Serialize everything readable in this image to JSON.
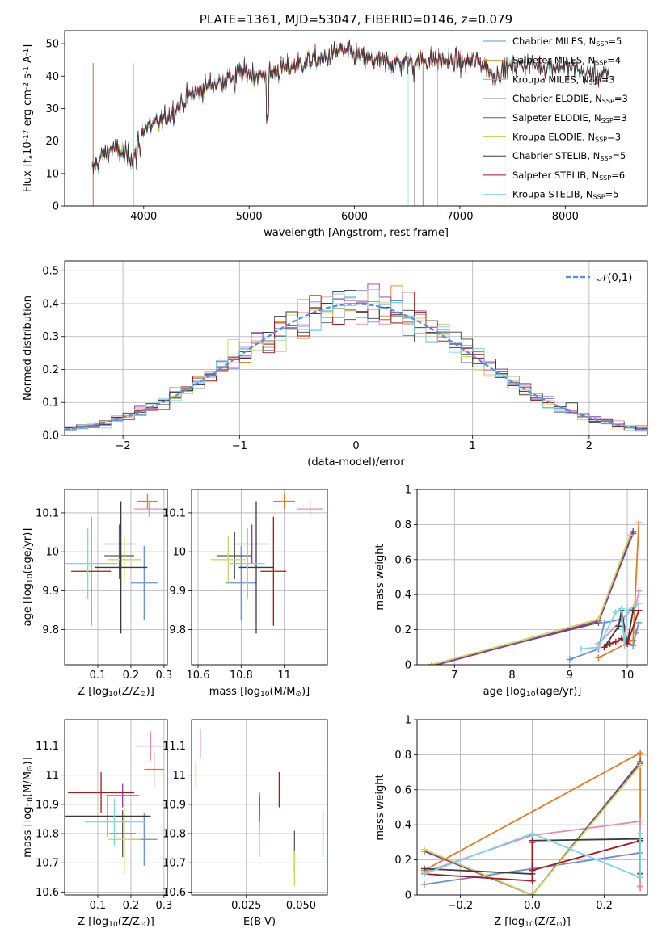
{
  "colors": {
    "series": [
      "#6a8fd8",
      "#e07b25",
      "#e58cb6",
      "#5a5a5a",
      "#8e3aa8",
      "#c9d857",
      "#3b3b3b",
      "#a3191c",
      "#7dd6de"
    ],
    "normal": "#5b8dd6",
    "grid": "#b0b0b0"
  },
  "series_names": [
    "Chabrier MILES, N$_{SSP}$=5",
    "Salpeter MILES, N$_{SSP}$=4",
    "Kroupa MILES, N$_{SSP}$=3",
    "Chabrier ELODIE, N$_{SSP}$=3",
    "Salpeter ELODIE, N$_{SSP}$=3",
    "Kroupa ELODIE, N$_{SSP}$=3",
    "Chabrier STELIB, N$_{SSP}$=5",
    "Salpeter STELIB, N$_{SSP}$=6",
    "Kroupa STELIB, N$_{SSP}$=5"
  ],
  "chart_data": [
    {
      "type": "line",
      "title": "PLATE=1361, MJD=53047, FIBERID=0146, z=0.079",
      "xlabel": "wavelength [Angstrom, rest frame]",
      "ylabel": "Flux [f$_\\lambda$10$^{-17}$ erg cm$^{-2}$ s$^{-1}$ A$^{-1}$]",
      "xlim": [
        3250,
        8780
      ],
      "ylim": [
        0,
        54
      ],
      "xticks": [
        4000,
        5000,
        6000,
        7000,
        8000
      ],
      "yticks": [
        0,
        10,
        20,
        30,
        40,
        50
      ],
      "grid": false,
      "legend": "upper right",
      "spectrum_anchors": {
        "x": [
          3510,
          3600,
          3700,
          3800,
          3900,
          3950,
          4000,
          4100,
          4200,
          4300,
          4400,
          4500,
          4600,
          4700,
          4800,
          4900,
          5000,
          5100,
          5200,
          5300,
          5400,
          5500,
          5600,
          5700,
          5800,
          5870,
          5950,
          6050,
          6150,
          6250,
          6350,
          6450,
          6550,
          6650,
          6750,
          6850,
          6950,
          7050,
          7150,
          7250,
          7320,
          7420,
          7600,
          7800,
          8000,
          8200,
          8400
        ],
        "y": [
          11,
          15,
          18,
          16,
          15,
          20,
          24,
          25,
          27,
          30,
          33,
          35,
          37,
          38,
          39,
          41,
          41,
          40,
          41,
          42,
          43,
          44,
          45,
          45,
          47,
          48,
          47,
          46,
          45,
          44.5,
          44,
          44,
          44.5,
          45,
          45,
          45,
          44.5,
          44,
          45,
          43,
          40,
          42,
          44,
          43,
          43,
          41,
          40
        ]
      }
    },
    {
      "type": "line",
      "xlabel": "(data-model)/error",
      "ylabel": "Normed distribution",
      "xlim": [
        -2.5,
        2.5
      ],
      "ylim": [
        0,
        0.53
      ],
      "xticks": [
        -2,
        -1,
        0,
        1,
        2
      ],
      "yticks": [
        0.0,
        0.1,
        0.2,
        0.3,
        0.4,
        0.5
      ],
      "grid": true,
      "legend": "upper right",
      "normal_label": "$\\mathcal{N}(0,1)$"
    },
    {
      "type": "scatter",
      "xlabel": "Z [log$_{10}$(Z/Z$_\\odot$)]",
      "ylabel": "age  [log$_{10}$(age/yr)]",
      "xlim": [
        0.0,
        0.31
      ],
      "ylim": [
        9.71,
        10.16
      ],
      "xticks": [
        0.1,
        0.2,
        0.3
      ],
      "yticks": [
        9.8,
        9.9,
        10.0,
        10.1
      ],
      "grid": true,
      "points": [
        {
          "s": 0,
          "x": 0.24,
          "xerr": 0.04,
          "y": 9.92,
          "yerr": 0.095
        },
        {
          "s": 1,
          "x": 0.25,
          "xerr": 0.03,
          "y": 10.13,
          "yerr": 0.02
        },
        {
          "s": 2,
          "x": 0.255,
          "xerr": 0.045,
          "y": 10.11,
          "yerr": 0.02
        },
        {
          "s": 3,
          "x": 0.165,
          "xerr": 0.045,
          "y": 9.99,
          "yerr": 0.06
        },
        {
          "s": 4,
          "x": 0.165,
          "xerr": 0.05,
          "y": 10.02,
          "yerr": 0.05
        },
        {
          "s": 5,
          "x": 0.18,
          "xerr": 0.05,
          "y": 9.98,
          "yerr": 0.06
        },
        {
          "s": 6,
          "x": 0.17,
          "xerr": 0.08,
          "y": 9.96,
          "yerr": 0.17
        },
        {
          "s": 7,
          "x": 0.08,
          "xerr": 0.06,
          "y": 9.95,
          "yerr": 0.14
        },
        {
          "s": 8,
          "x": 0.07,
          "xerr": 0.09,
          "y": 9.97,
          "yerr": 0.09
        }
      ]
    },
    {
      "type": "scatter",
      "xlabel": "mass [log$_{10}$(M/M$_\\odot$)]",
      "ylabel": "",
      "xlim": [
        10.57,
        11.2
      ],
      "ylim": [
        9.71,
        10.16
      ],
      "xticks": [
        10.6,
        10.8,
        11.0
      ],
      "yticks": [
        9.8,
        9.9,
        10.0,
        10.1
      ],
      "grid": true,
      "points": [
        {
          "s": 0,
          "x": 10.8,
          "xerr": 0.07,
          "y": 9.92,
          "yerr": 0.095
        },
        {
          "s": 1,
          "x": 11.0,
          "xerr": 0.05,
          "y": 10.13,
          "yerr": 0.02
        },
        {
          "s": 2,
          "x": 11.12,
          "xerr": 0.06,
          "y": 10.11,
          "yerr": 0.02
        },
        {
          "s": 3,
          "x": 10.77,
          "xerr": 0.08,
          "y": 9.99,
          "yerr": 0.06
        },
        {
          "s": 4,
          "x": 10.85,
          "xerr": 0.08,
          "y": 10.02,
          "yerr": 0.05
        },
        {
          "s": 5,
          "x": 10.74,
          "xerr": 0.08,
          "y": 9.98,
          "yerr": 0.06
        },
        {
          "s": 6,
          "x": 10.87,
          "xerr": 0.08,
          "y": 9.96,
          "yerr": 0.17
        },
        {
          "s": 7,
          "x": 10.95,
          "xerr": 0.06,
          "y": 9.95,
          "yerr": 0.14
        },
        {
          "s": 8,
          "x": 10.83,
          "xerr": 0.08,
          "y": 9.97,
          "yerr": 0.09
        }
      ]
    },
    {
      "type": "line",
      "xlabel": "age  [log$_{10}$(age/yr)]",
      "ylabel": "mass weight",
      "xlim": [
        6.35,
        10.35
      ],
      "ylim": [
        0.0,
        1.0
      ],
      "xticks": [
        7,
        8,
        9,
        10
      ],
      "yticks": [
        0.0,
        0.2,
        0.4,
        0.6,
        0.8,
        1.0
      ],
      "grid": true,
      "series": [
        {
          "s": 0,
          "x": [
            9.0,
            9.5,
            9.6,
            9.9,
            10.0,
            10.1,
            10.15,
            10.2
          ],
          "y": [
            0.03,
            0.09,
            0.24,
            0.26,
            0.13,
            0.11,
            0.18,
            0.24
          ]
        },
        {
          "s": 1,
          "x": [
            9.5,
            10.1,
            10.2
          ],
          "y": [
            0.04,
            0.14,
            0.81
          ]
        },
        {
          "s": 2,
          "x": [
            9.5,
            10.15,
            10.2
          ],
          "y": [
            0.12,
            0.34,
            0.42
          ]
        },
        {
          "s": 3,
          "x": [
            6.6,
            9.5,
            10.1
          ],
          "y": [
            0.0,
            0.24,
            0.76
          ]
        },
        {
          "s": 4,
          "x": [
            6.7,
            9.5,
            10.1
          ],
          "y": [
            0.0,
            0.25,
            0.75
          ]
        },
        {
          "s": 5,
          "x": [
            6.6,
            9.5,
            10.05
          ],
          "y": [
            0.0,
            0.26,
            0.74
          ]
        },
        {
          "s": 6,
          "x": [
            9.6,
            9.85,
            9.9,
            10.0,
            10.1
          ],
          "y": [
            0.1,
            0.22,
            0.31,
            0.12,
            0.31
          ]
        },
        {
          "s": 7,
          "x": [
            9.6,
            9.7,
            9.8,
            9.9,
            10.0,
            10.2
          ],
          "y": [
            0.1,
            0.12,
            0.13,
            0.15,
            0.12,
            0.31
          ]
        },
        {
          "s": 8,
          "x": [
            9.2,
            9.5,
            9.8,
            9.9,
            9.95,
            10.0,
            10.2
          ],
          "y": [
            0.09,
            0.1,
            0.3,
            0.32,
            0.11,
            0.31,
            0.35
          ]
        }
      ]
    },
    {
      "type": "scatter",
      "xlabel": "Z [log$_{10}$(Z/Z$_\\odot$)]",
      "ylabel": "mass [log$_{10}$(M/M$_\\odot$)]",
      "xlim": [
        0.0,
        0.31
      ],
      "ylim": [
        10.59,
        11.19
      ],
      "xticks": [
        0.1,
        0.2,
        0.3
      ],
      "yticks": [
        10.6,
        10.7,
        10.8,
        10.9,
        11.0,
        11.1
      ],
      "grid": true,
      "points": [
        {
          "s": 0,
          "x": 0.24,
          "xerr": 0.04,
          "y": 10.78,
          "yerr": 0.09
        },
        {
          "s": 1,
          "x": 0.27,
          "xerr": 0.03,
          "y": 11.02,
          "yerr": 0.06
        },
        {
          "s": 2,
          "x": 0.26,
          "xerr": 0.045,
          "y": 11.1,
          "yerr": 0.05
        },
        {
          "s": 3,
          "x": 0.175,
          "xerr": 0.04,
          "y": 10.8,
          "yerr": 0.08
        },
        {
          "s": 4,
          "x": 0.175,
          "xerr": 0.05,
          "y": 10.93,
          "yerr": 0.04
        },
        {
          "s": 5,
          "x": 0.18,
          "xerr": 0.05,
          "y": 10.78,
          "yerr": 0.12
        },
        {
          "s": 6,
          "x": 0.13,
          "xerr": 0.13,
          "y": 10.86,
          "yerr": 0.07
        },
        {
          "s": 7,
          "x": 0.11,
          "xerr": 0.1,
          "y": 10.94,
          "yerr": 0.07
        },
        {
          "s": 8,
          "x": 0.15,
          "xerr": 0.09,
          "y": 10.84,
          "yerr": 0.08
        }
      ]
    },
    {
      "type": "scatter",
      "xlabel": "E(B-V)",
      "ylabel": "",
      "xlim": [
        0.0,
        0.062
      ],
      "ylim": [
        10.59,
        11.19
      ],
      "xticks": [
        0.025,
        0.05
      ],
      "xticklabels": [
        "0.025",
        "0.050"
      ],
      "yticks": [
        10.6,
        10.7,
        10.8,
        10.9,
        11.0,
        11.1
      ],
      "grid": true,
      "points": [
        {
          "s": 0,
          "x": 0.06,
          "y": 10.8,
          "yerr": 0.08
        },
        {
          "s": 1,
          "x": 0.002,
          "y": 11.0,
          "yerr": 0.04
        },
        {
          "s": 2,
          "x": 0.004,
          "y": 11.11,
          "yerr": 0.05
        },
        {
          "s": 3,
          "x": 0.047,
          "y": 10.74,
          "yerr": 0.07
        },
        {
          "s": 4,
          "x": 0.031,
          "y": 10.9,
          "yerr": 0.04
        },
        {
          "s": 5,
          "x": 0.047,
          "y": 10.68,
          "yerr": 0.06
        },
        {
          "s": 6,
          "x": 0.031,
          "y": 10.87,
          "yerr": 0.06
        },
        {
          "s": 7,
          "x": 0.04,
          "y": 10.95,
          "yerr": 0.06
        },
        {
          "s": 8,
          "x": 0.031,
          "y": 10.78,
          "yerr": 0.06
        }
      ]
    },
    {
      "type": "line",
      "xlabel": "Z [log$_{10}$(Z/Z$_\\odot$)]",
      "ylabel": "mass weight",
      "xlim": [
        -0.32,
        0.32
      ],
      "ylim": [
        0.0,
        1.0
      ],
      "xticks": [
        -0.2,
        0.0,
        0.2
      ],
      "xticklabels": [
        "−0.2",
        "0.0",
        "0.2"
      ],
      "yticks": [
        0.0,
        0.2,
        0.4,
        0.6,
        0.8,
        1.0
      ],
      "grid": true,
      "series": [
        {
          "s": 0,
          "x": [
            -0.3,
            0.0,
            0.3,
            0.3,
            0.3
          ],
          "y": [
            0.06,
            0.15,
            0.24,
            0.13,
            0.3
          ]
        },
        {
          "s": 1,
          "x": [
            -0.3,
            0.3,
            0.3
          ],
          "y": [
            0.14,
            0.81,
            0.04
          ]
        },
        {
          "s": 2,
          "x": [
            -0.3,
            0.0,
            0.3,
            0.3
          ],
          "y": [
            0.13,
            0.34,
            0.42,
            0.05
          ]
        },
        {
          "s": 3,
          "x": [
            -0.3,
            0.0,
            0.3
          ],
          "y": [
            0.25,
            0.0,
            0.76
          ]
        },
        {
          "s": 4,
          "x": [
            -0.3,
            0.0,
            0.3
          ],
          "y": [
            0.25,
            0.0,
            0.75
          ]
        },
        {
          "s": 5,
          "x": [
            -0.3,
            0.0,
            0.3
          ],
          "y": [
            0.26,
            0.0,
            0.74
          ]
        },
        {
          "s": 6,
          "x": [
            -0.3,
            0.0,
            0.0,
            0.3,
            0.3
          ],
          "y": [
            0.15,
            0.12,
            0.31,
            0.32,
            0.1
          ]
        },
        {
          "s": 7,
          "x": [
            -0.3,
            0.0,
            0.0,
            0.0,
            0.3,
            0.3
          ],
          "y": [
            0.12,
            0.08,
            0.3,
            0.14,
            0.31,
            0.12
          ]
        },
        {
          "s": 8,
          "x": [
            -0.3,
            0.0,
            0.3,
            0.3,
            0.3
          ],
          "y": [
            0.12,
            0.35,
            0.1,
            0.3,
            0.35
          ]
        }
      ]
    }
  ]
}
